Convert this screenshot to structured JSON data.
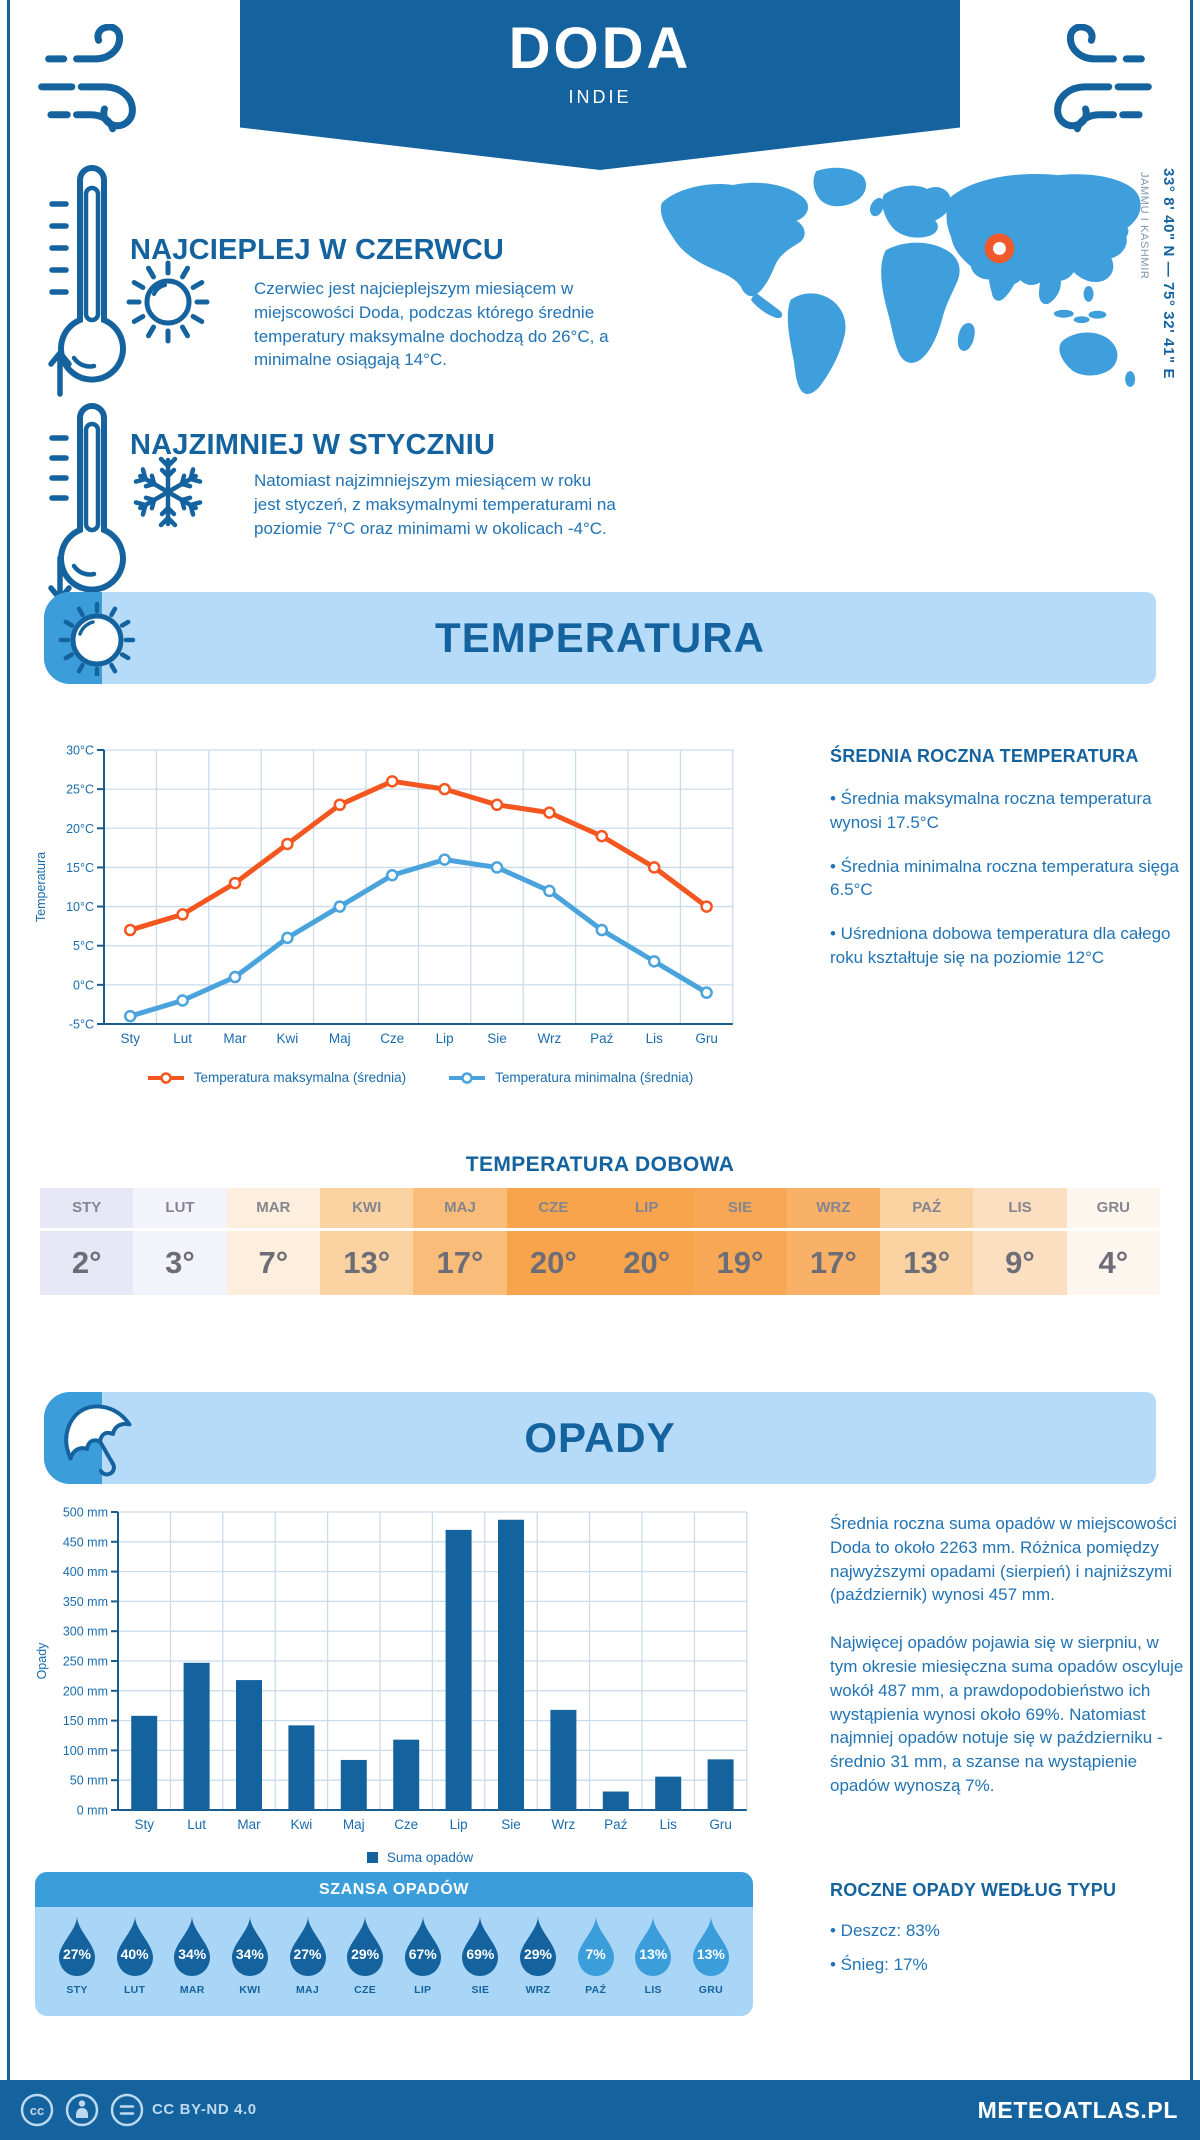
{
  "page": {
    "title": "DODA",
    "subtitle": "INDIE",
    "coordinates": "33° 8' 40\" N — 75° 32' 41\" E",
    "region": "JAMMU I KASHMIR"
  },
  "warmest": {
    "heading": "NAJCIEPLEJ W CZERWCU",
    "text": "Czerwiec jest najcieplejszym miesiącem w miejscowości Doda, podczas którego średnie temperatury maksymalne dochodzą do 26°C, a minimalne osiągają 14°C."
  },
  "coldest": {
    "heading": "NAJZIMNIEJ W STYCZNIU",
    "text": "Natomiast najzimniejszym miesiącem w roku jest styczeń, z maksymalnymi temperaturami na poziomie 7°C oraz minimami w okolicach -4°C."
  },
  "temperature_section": {
    "banner": "TEMPERATURA",
    "right": {
      "heading": "ŚREDNIA ROCZNA TEMPERATURA",
      "bullets": [
        "• Średnia maksymalna roczna temperatura wynosi 17.5°C",
        "• Średnia minimalna roczna temperatura sięga 6.5°C",
        "• Uśredniona dobowa temperatura dla całego roku kształtuje się na poziomie 12°C"
      ]
    },
    "daily": {
      "heading": "TEMPERATURA DOBOWA",
      "months": [
        "STY",
        "LUT",
        "MAR",
        "KWI",
        "MAJ",
        "CZE",
        "LIP",
        "SIE",
        "WRZ",
        "PAŹ",
        "LIS",
        "GRU"
      ],
      "values": [
        "2°",
        "3°",
        "7°",
        "13°",
        "17°",
        "20°",
        "20°",
        "19°",
        "17°",
        "13°",
        "9°",
        "4°"
      ],
      "cell_colors": [
        "#e7e7f6",
        "#f3f3fb",
        "#fdeedd",
        "#fbd2a2",
        "#fabd79",
        "#f7a44c",
        "#f7a44c",
        "#f8a854",
        "#f9b067",
        "#fbd2a2",
        "#fcdfc0",
        "#fdf6ee"
      ]
    }
  },
  "precipitation_section": {
    "banner": "OPADY",
    "paragraphs": [
      "Średnia roczna suma opadów w miejscowości Doda to około 2263 mm. Różnica pomiędzy najwyższymi opadami (sierpień) i najniższymi (październik) wynosi 457 mm.",
      "Najwięcej opadów pojawia się w sierpniu, w tym okresie miesięczna suma opadów oscyluje wokół 487 mm, a prawdopodobieństwo ich wystąpienia wynosi około 69%. Natomiast najmniej opadów notuje się w październiku - średnio 31 mm, a szanse na wystąpienie opadów wynoszą 7%."
    ],
    "type_heading": "ROCZNE OPADY WEDŁUG TYPU",
    "type_bullets": [
      "• Deszcz: 83%",
      "• Śnieg: 17%"
    ],
    "chance": {
      "heading": "SZANSA OPADÓW",
      "months": [
        "STY",
        "LUT",
        "MAR",
        "KWI",
        "MAJ",
        "CZE",
        "LIP",
        "SIE",
        "WRZ",
        "PAŹ",
        "LIS",
        "GRU"
      ],
      "values": [
        "27%",
        "40%",
        "34%",
        "34%",
        "27%",
        "29%",
        "67%",
        "69%",
        "29%",
        "7%",
        "13%",
        "13%"
      ],
      "drop_colors": [
        "#15639e",
        "#15639e",
        "#15639e",
        "#15639e",
        "#15639e",
        "#15639e",
        "#15639e",
        "#15639e",
        "#15639e",
        "#3b9edb",
        "#3b9edb",
        "#3b9edb"
      ]
    }
  },
  "footer": {
    "license": "CC BY-ND 4.0",
    "brand": "METEOATLAS.PL"
  },
  "colors": {
    "primary": "#15639e",
    "accent": "#3b9edb",
    "banner_bg": "#b5dbf8",
    "panel_bg": "#a9d6f6",
    "body_text": "#2173b4",
    "axis_text": "#1a6cae",
    "axis_line": "#1b5c8f",
    "gridline": "#c9dcee",
    "orange": "#f4561f",
    "marker_orange": "#f0592b",
    "map_blue": "#3f9fdc"
  },
  "chart_data": [
    {
      "type": "line",
      "title": "",
      "x": [
        "Sty",
        "Lut",
        "Mar",
        "Kwi",
        "Maj",
        "Cze",
        "Lip",
        "Sie",
        "Wrz",
        "Paź",
        "Lis",
        "Gru"
      ],
      "xlabel": "",
      "ylabel": "Temperatura",
      "ylim": [
        -5,
        30
      ],
      "ytick_step": 5,
      "ytick_suffix": "°C",
      "grid": true,
      "legend_position": "bottom",
      "series": [
        {
          "name": "Temperatura maksymalna (średnia)",
          "color": "#f4561f",
          "values": [
            7,
            9,
            13,
            18,
            23,
            26,
            25,
            23,
            22,
            19,
            15,
            10
          ]
        },
        {
          "name": "Temperatura minimalna (średnia)",
          "color": "#4aa3dd",
          "values": [
            -4,
            -2,
            1,
            6,
            10,
            14,
            16,
            15,
            12,
            7,
            3,
            -1
          ]
        }
      ]
    },
    {
      "type": "bar",
      "title": "",
      "x": [
        "Sty",
        "Lut",
        "Mar",
        "Kwi",
        "Maj",
        "Cze",
        "Lip",
        "Sie",
        "Wrz",
        "Paź",
        "Lis",
        "Gru"
      ],
      "xlabel": "",
      "ylabel": "Opady",
      "ylim": [
        0,
        500
      ],
      "ytick_step": 50,
      "ytick_suffix": " mm",
      "grid": true,
      "legend_position": "bottom",
      "series": [
        {
          "name": "Suma opadów",
          "color": "#15639e",
          "values": [
            158,
            247,
            218,
            142,
            84,
            118,
            470,
            487,
            168,
            31,
            56,
            85
          ]
        }
      ]
    }
  ]
}
